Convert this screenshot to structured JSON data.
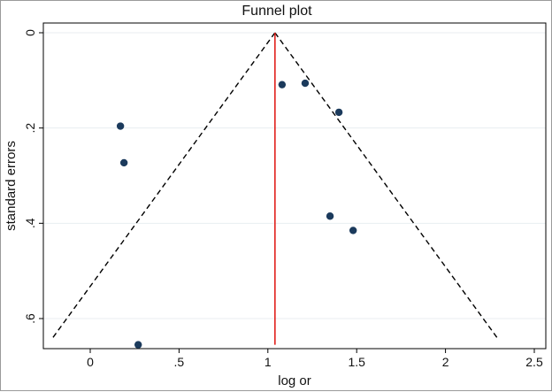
{
  "chart_data": {
    "type": "scatter",
    "title": "Funnel plot",
    "xlabel": "log or",
    "ylabel": "standard errors",
    "xlim": [
      -0.25,
      2.5
    ],
    "ylim": [
      0,
      0.655
    ],
    "y_reversed": true,
    "xticks": [
      0,
      0.5,
      1,
      1.5,
      2,
      2.5
    ],
    "xtick_labels": [
      "0",
      ".5",
      "1",
      "1.5",
      "2",
      "2.5"
    ],
    "yticks": [
      0,
      0.2,
      0.4,
      0.6
    ],
    "ytick_labels": [
      "0",
      ".2",
      ".4",
      ".6"
    ],
    "grid": true,
    "points": [
      {
        "x": 0.17,
        "y": 0.196
      },
      {
        "x": 0.19,
        "y": 0.273
      },
      {
        "x": 0.27,
        "y": 0.655
      },
      {
        "x": 1.08,
        "y": 0.109
      },
      {
        "x": 1.21,
        "y": 0.106
      },
      {
        "x": 1.4,
        "y": 0.167
      },
      {
        "x": 1.35,
        "y": 0.385
      },
      {
        "x": 1.48,
        "y": 0.415
      }
    ],
    "pooled_estimate": 1.04,
    "funnel_limits": {
      "apex": [
        1.04,
        0
      ],
      "lower_left": [
        -0.22,
        0.645
      ],
      "lower_right": [
        2.3,
        0.645
      ]
    },
    "colors": {
      "points": "#1b3a5c",
      "pooled_line": "#e0201b",
      "funnel": "#000000",
      "grid": "#e8eef0"
    }
  }
}
